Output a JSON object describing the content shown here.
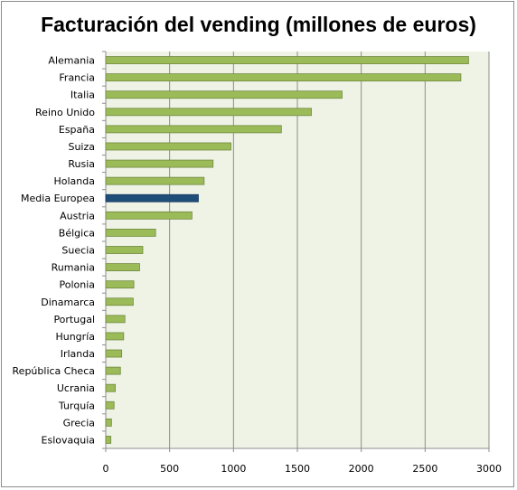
{
  "chart_data": {
    "type": "bar",
    "orientation": "horizontal",
    "title": "Facturación del vending (millones de euros)",
    "xlabel": "",
    "ylabel": "",
    "xlim": [
      0,
      3000
    ],
    "xticks": [
      0,
      500,
      1000,
      1500,
      2000,
      2500,
      3000
    ],
    "grid": true,
    "legend": "none",
    "categories": [
      "Alemania",
      "Francia",
      "Italia",
      "Reino Unido",
      "España",
      "Suiza",
      "Rusia",
      "Holanda",
      "Media Europea",
      "Austria",
      "Bélgica",
      "Suecia",
      "Rumania",
      "Polonia",
      "Dinamarca",
      "Portugal",
      "Hungría",
      "Irlanda",
      "República Checa",
      "Ucrania",
      "Turquía",
      "Grecia",
      "Eslovaquia"
    ],
    "values": [
      2840,
      2780,
      1850,
      1610,
      1375,
      980,
      840,
      770,
      725,
      675,
      390,
      290,
      265,
      220,
      215,
      150,
      140,
      125,
      115,
      75,
      65,
      45,
      40
    ],
    "highlight": "Media Europea",
    "colors": {
      "bar": "#9bbb59",
      "bar_border": "#71893f",
      "highlight": "#1f4e79",
      "highlight_border": "#17375e",
      "plot_background": "#eef3e6",
      "gridline": "#8c8c8c"
    }
  }
}
